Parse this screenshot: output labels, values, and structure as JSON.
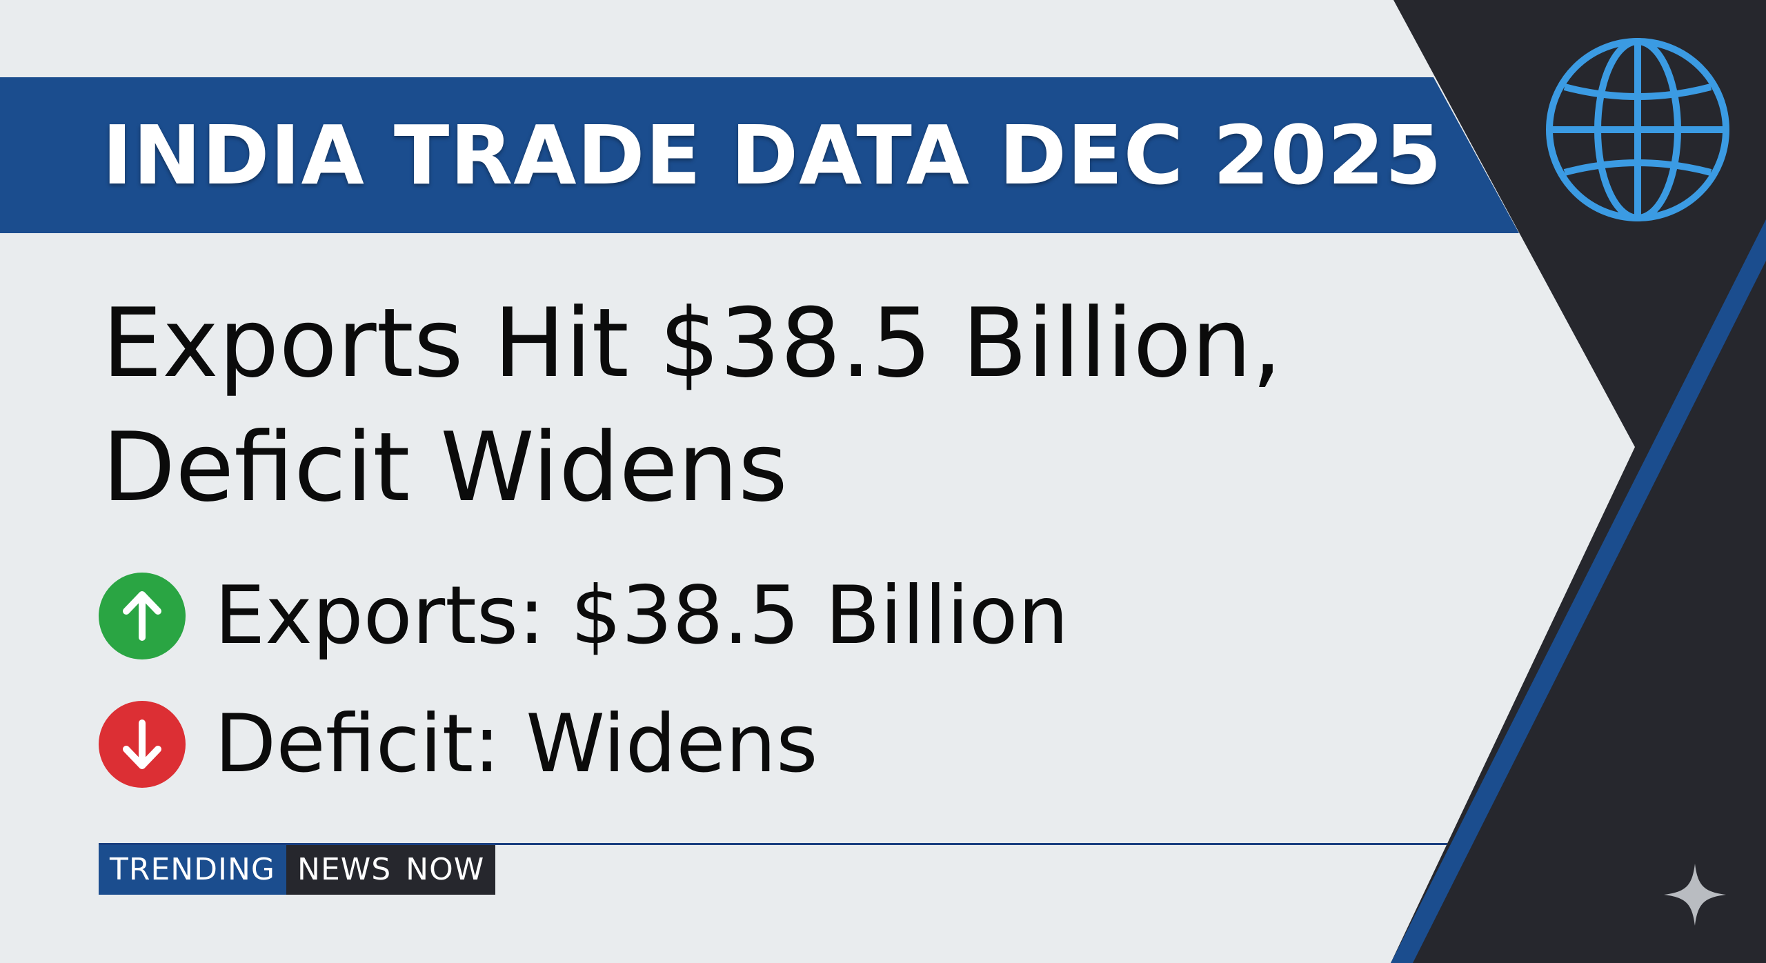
{
  "banner": {
    "title": "INDIA TRADE DATA DEC 2025"
  },
  "headline": {
    "line1": "Exports Hit $38.5 Billion,",
    "line2": "Deficit Widens"
  },
  "stats": [
    {
      "icon": "arrow-up-icon",
      "label": "Exports: $38.5 Billion",
      "color": "#2aa543"
    },
    {
      "icon": "arrow-down-icon",
      "label": "Deficit: Widens",
      "color": "#dc2f34"
    }
  ],
  "ticker": {
    "part1": "TRENDING",
    "part2": "NEWS NOW"
  },
  "colors": {
    "background": "#e9ecee",
    "navy": "#1b4d8e",
    "dark_panel": "#26272d",
    "globe": "#3b9be3"
  },
  "icons": {
    "corner": "globe-icon",
    "watermark": "sparkle-icon"
  }
}
